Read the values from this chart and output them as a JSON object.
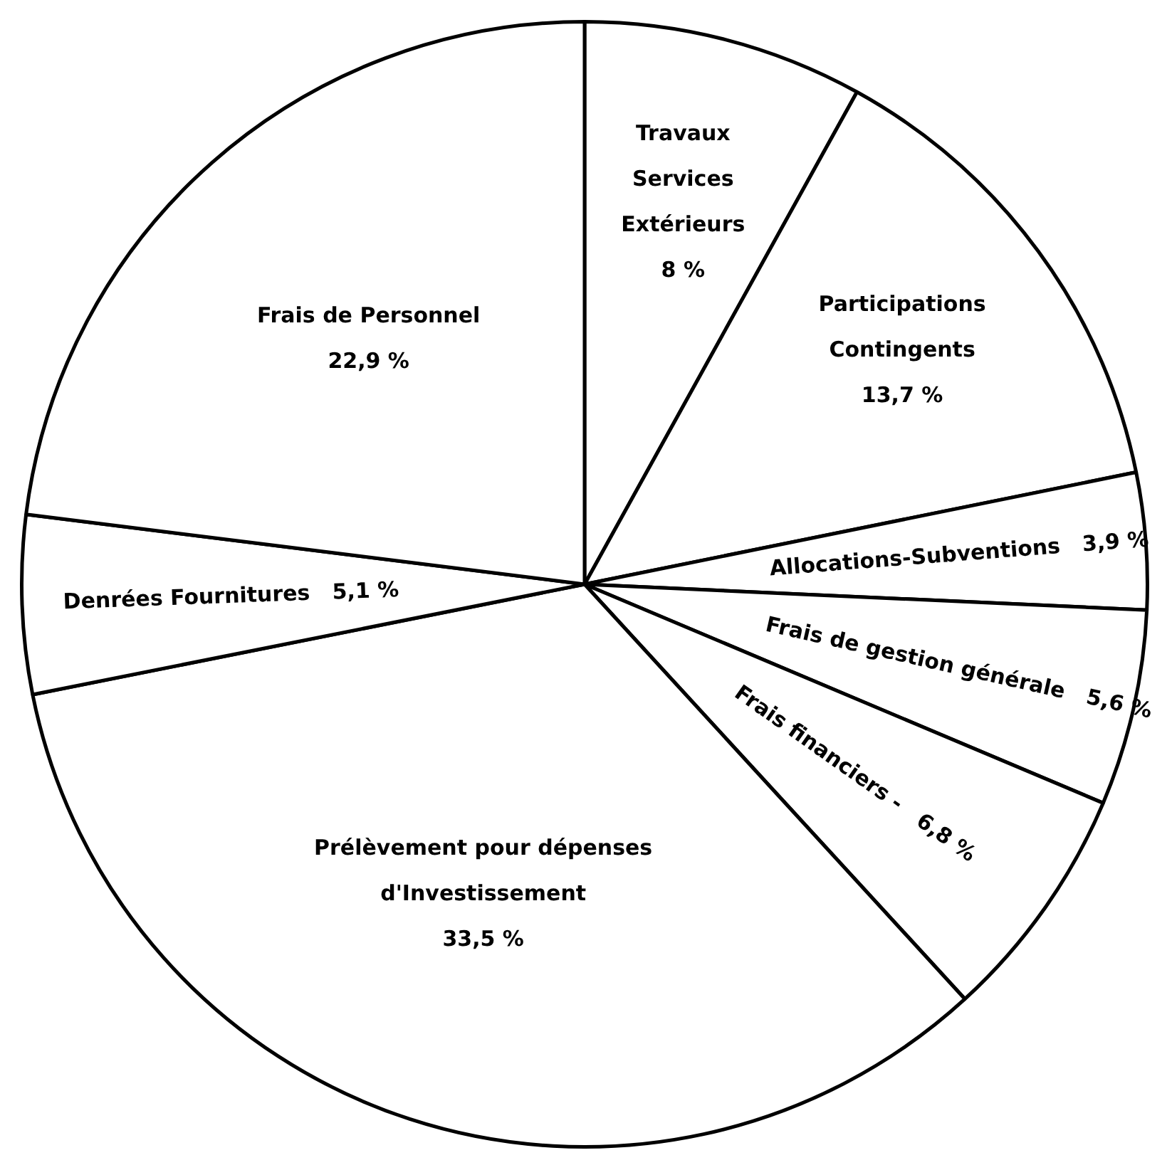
{
  "chart_data": {
    "type": "pie",
    "categories": [
      "Travaux Services Extérieurs",
      "Participations Contingents",
      "Allocations-Subventions",
      "Frais de gestion générale",
      "Frais financiers -",
      "Prélèvement pour dépenses d'Investissement",
      "Denrées Fournitures",
      "Frais de Personnel"
    ],
    "values": [
      8,
      13.7,
      3.9,
      5.6,
      6.8,
      33.5,
      5.1,
      22.9
    ],
    "value_labels": [
      "8 %",
      "13,7 %",
      "3,9 %",
      "5,6 %",
      "6,8 %",
      "33,5 %",
      "5,1 %",
      "22,9 %"
    ],
    "colors": [
      "#ffffff",
      "#ffffff",
      "#ffffff",
      "#ffffff",
      "#ffffff",
      "#ffffff",
      "#ffffff",
      "#ffffff"
    ]
  }
}
